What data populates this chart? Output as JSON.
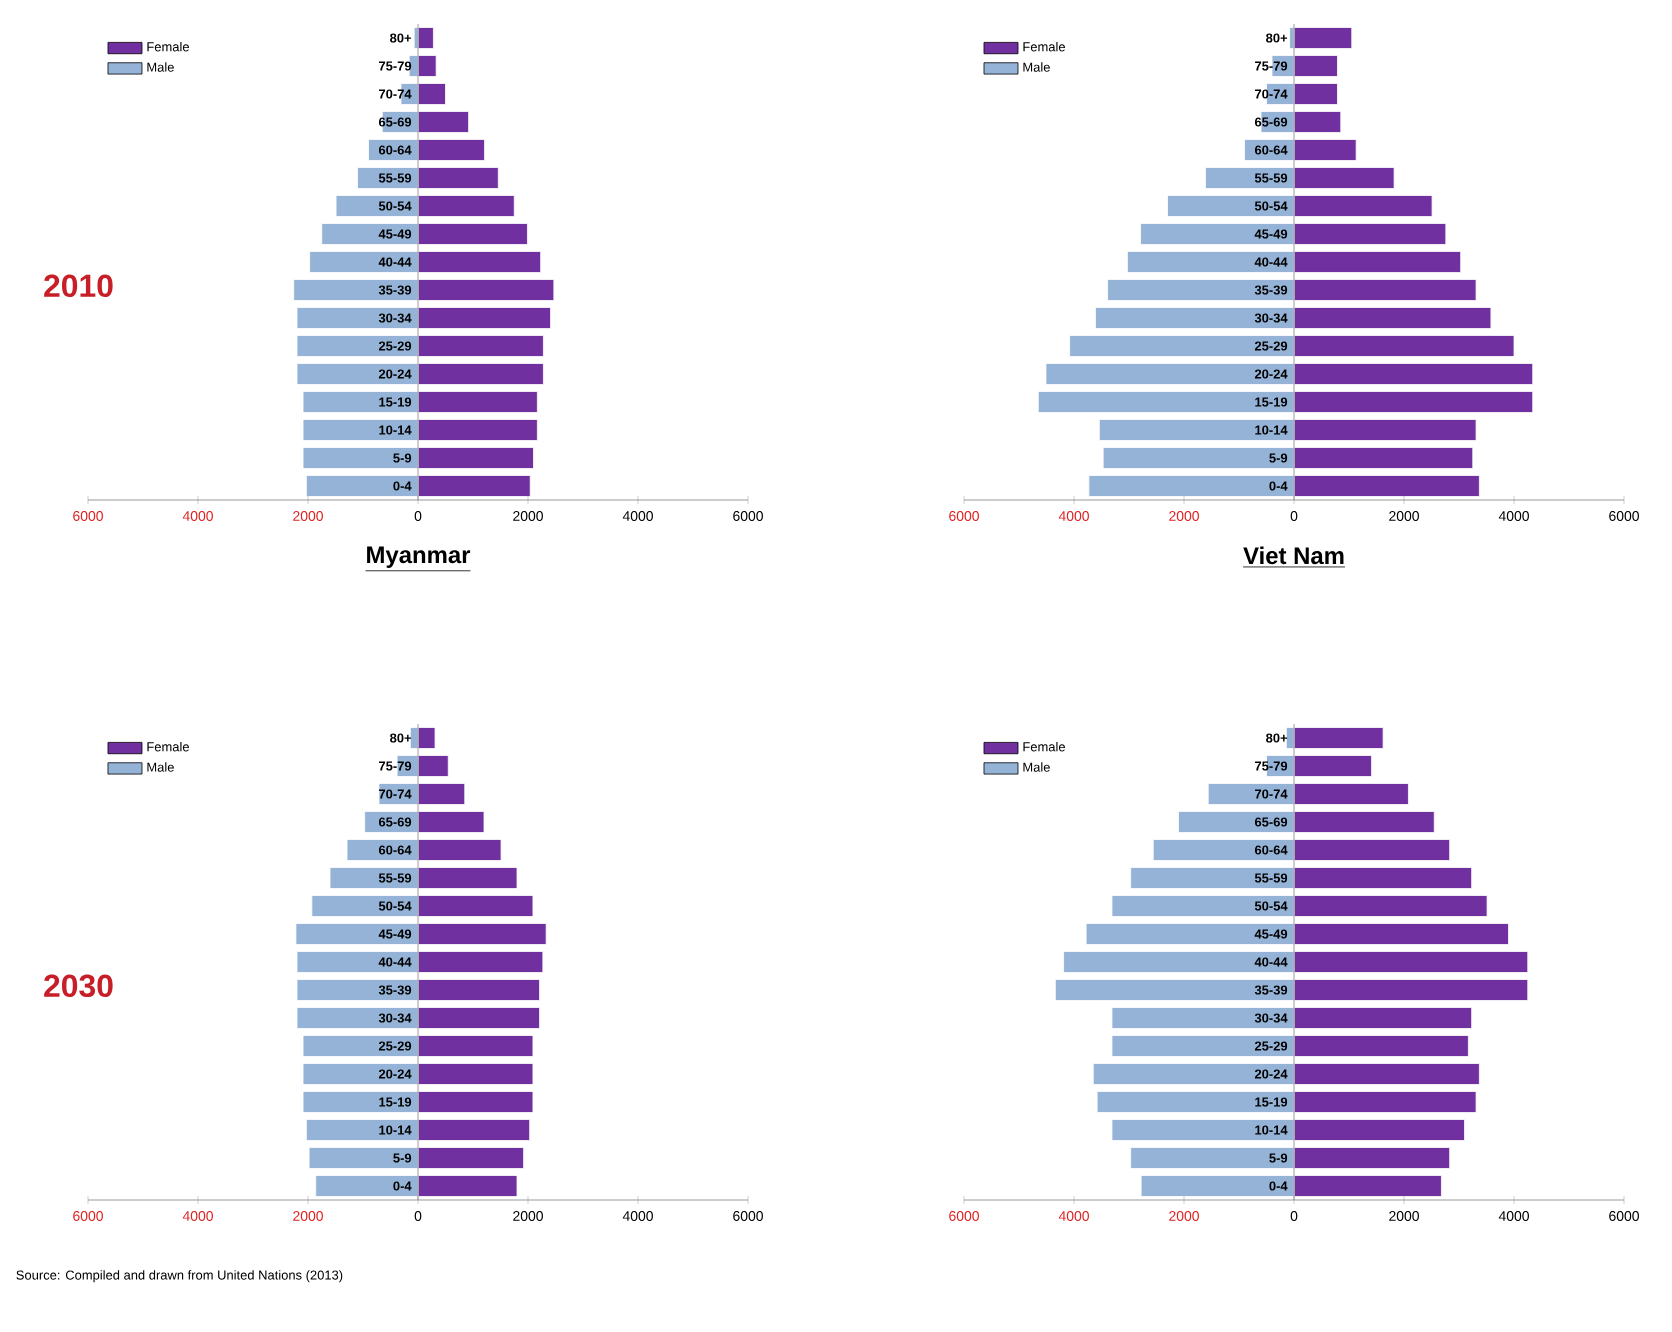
{
  "chart_data": [
    {
      "type": "bar",
      "orientation": "horizontal",
      "stacked": true,
      "ylabel": "2010",
      "xlabel": "Myanmar",
      "legend": "top left",
      "categories": [
        "80+",
        "75-79",
        "70-74",
        "65-69",
        "60-64",
        "55-59",
        "50-54",
        "45-49",
        "40-44",
        "35-39",
        "30-34",
        "25-29",
        "20-24",
        "15-19",
        "10-14",
        "5-9",
        "0-4"
      ],
      "series": [
        {
          "name": "Female",
          "color": "#7030a0",
          "values": [
            280,
            330,
            500,
            920,
            1210,
            1460,
            1750,
            1990,
            2230,
            2470,
            2410,
            2280,
            2280,
            2170,
            2170,
            2100,
            2040
          ]
        },
        {
          "name": "Male",
          "color": "#95b3d7",
          "values": [
            -70,
            -160,
            -310,
            -650,
            -900,
            -1100,
            -1490,
            -1750,
            -1970,
            -2260,
            -2200,
            -2200,
            -2200,
            -2090,
            -2090,
            -2090,
            -2030
          ]
        }
      ],
      "xlim": [
        -6000,
        6000
      ],
      "xticks": [
        {
          "value": -6000,
          "label": "6000"
        },
        {
          "value": -4000,
          "label": "4000"
        },
        {
          "value": -2000,
          "label": "2000"
        },
        0,
        2000,
        4000,
        6000
      ]
    },
    {
      "type": "bar",
      "orientation": "horizontal",
      "stacked": true,
      "xlabel": "Viet Nam",
      "legend": "top left",
      "categories": [
        "80+",
        "75-79",
        "70-74",
        "65-69",
        "60-64",
        "55-59",
        "50-54",
        "45-49",
        "40-44",
        "35-39",
        "30-34",
        "25-29",
        "20-24",
        "15-19",
        "10-14",
        "5-9",
        "0-4"
      ],
      "series": [
        {
          "name": "Female",
          "color": "#7030a0",
          "values": [
            1050,
            790,
            790,
            850,
            1130,
            1820,
            2510,
            2760,
            3030,
            3310,
            3580,
            4000,
            4340,
            4340,
            3310,
            3250,
            3370
          ]
        },
        {
          "name": "Male",
          "color": "#95b3d7",
          "values": [
            -80,
            -400,
            -500,
            -600,
            -900,
            -1610,
            -2300,
            -2790,
            -3030,
            -3390,
            -3610,
            -4080,
            -4510,
            -4650,
            -3540,
            -3470,
            -3730
          ]
        }
      ],
      "xlim": [
        -6000,
        6000
      ],
      "xticks": [
        {
          "value": -6000,
          "label": "6000"
        },
        {
          "value": -4000,
          "label": "4000"
        },
        {
          "value": -2000,
          "label": "2000"
        },
        0,
        2000,
        4000,
        6000
      ]
    },
    {
      "type": "bar",
      "orientation": "horizontal",
      "stacked": true,
      "ylabel": "2030",
      "legend": "top left",
      "annotations": [
        "Source: Compiled and drawn from United Nations (2013)"
      ],
      "categories": [
        "80+",
        "75-79",
        "70-74",
        "65-69",
        "60-64",
        "55-59",
        "50-54",
        "45-49",
        "40-44",
        "35-39",
        "30-34",
        "25-29",
        "20-24",
        "15-19",
        "10-14",
        "5-9",
        "0-4"
      ],
      "series": [
        {
          "name": "Female",
          "color": "#7030a0",
          "values": [
            310,
            550,
            850,
            1200,
            1510,
            1800,
            2090,
            2330,
            2270,
            2210,
            2210,
            2090,
            2090,
            2090,
            2030,
            1920,
            1800
          ]
        },
        {
          "name": "Male",
          "color": "#95b3d7",
          "values": [
            -140,
            -380,
            -710,
            -970,
            -1290,
            -1600,
            -1930,
            -2220,
            -2200,
            -2200,
            -2200,
            -2090,
            -2090,
            -2090,
            -2030,
            -1980,
            -1860
          ]
        }
      ],
      "xlim": [
        -6000,
        6000
      ],
      "xticks": [
        {
          "value": -6000,
          "label": "6000"
        },
        {
          "value": -4000,
          "label": "4000"
        },
        {
          "value": -2000,
          "label": "2000"
        },
        0,
        2000,
        4000,
        6000
      ]
    },
    {
      "type": "bar",
      "orientation": "horizontal",
      "stacked": true,
      "legend": "top left",
      "categories": [
        "80+",
        "75-79",
        "70-74",
        "65-69",
        "60-64",
        "55-59",
        "50-54",
        "45-49",
        "40-44",
        "35-39",
        "30-34",
        "25-29",
        "20-24",
        "15-19",
        "10-14",
        "5-9",
        "0-4"
      ],
      "series": [
        {
          "name": "Female",
          "color": "#7030a0",
          "values": [
            1620,
            1410,
            2080,
            2550,
            2830,
            3230,
            3510,
            3900,
            4250,
            4250,
            3230,
            3170,
            3370,
            3310,
            3100,
            2830,
            2680
          ]
        },
        {
          "name": "Male",
          "color": "#95b3d7",
          "values": [
            -140,
            -500,
            -1560,
            -2100,
            -2560,
            -2970,
            -3310,
            -3780,
            -4190,
            -4340,
            -3310,
            -3310,
            -3650,
            -3580,
            -3310,
            -2970,
            -2780
          ]
        }
      ],
      "xlim": [
        -6000,
        6000
      ],
      "xticks": [
        {
          "value": -6000,
          "label": "6000"
        },
        {
          "value": -4000,
          "label": "4000"
        },
        {
          "value": -2000,
          "label": "2000"
        },
        0,
        2000,
        4000,
        6000
      ]
    }
  ]
}
